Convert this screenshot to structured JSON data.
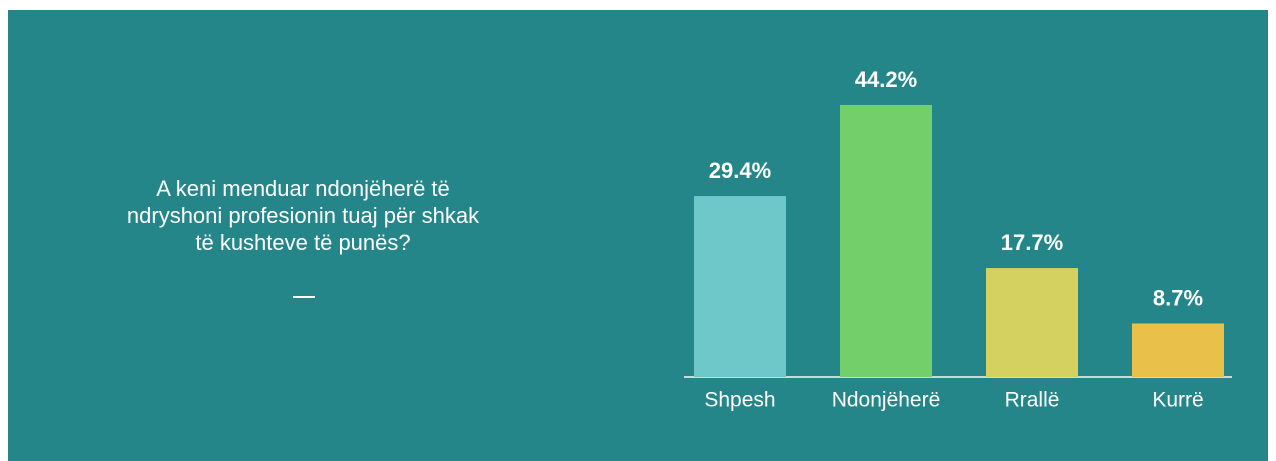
{
  "chart_data": {
    "type": "bar",
    "title": "A keni menduar ndonjëherë të ndryshoni profesionin tuaj për shkak të kushteve të punës?",
    "categories": [
      "Shpesh",
      "Ndonjëherë",
      "Rrallë",
      "Kurrë"
    ],
    "values": [
      29.4,
      44.2,
      17.7,
      8.7
    ],
    "value_labels": [
      "29.4%",
      "44.2%",
      "17.7%",
      "8.7%"
    ],
    "colors": [
      "#6ec7c8",
      "#72cf6a",
      "#d4d160",
      "#e8c04a"
    ]
  }
}
